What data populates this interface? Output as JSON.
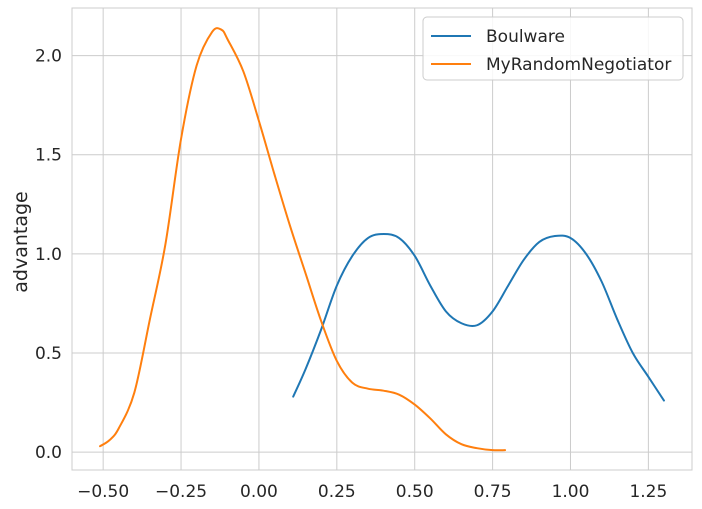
{
  "chart_data": {
    "type": "line",
    "xlabel": "",
    "ylabel": "advantage",
    "xlim": [
      -0.6,
      1.39
    ],
    "ylim": [
      -0.09,
      2.24
    ],
    "x_ticks": [
      -0.5,
      -0.25,
      0.0,
      0.25,
      0.5,
      0.75,
      1.0,
      1.25
    ],
    "x_tick_labels": [
      "−0.50",
      "−0.25",
      "0.00",
      "0.25",
      "0.50",
      "0.75",
      "1.00",
      "1.25"
    ],
    "y_ticks": [
      0.0,
      0.5,
      1.0,
      1.5,
      2.0
    ],
    "y_tick_labels": [
      "0.0",
      "0.5",
      "1.0",
      "1.5",
      "2.0"
    ],
    "grid": true,
    "legend_position": "top-right",
    "series": [
      {
        "name": "Boulware",
        "color": "#1f77b4",
        "x": [
          0.11,
          0.15,
          0.2,
          0.25,
          0.3,
          0.35,
          0.4,
          0.45,
          0.5,
          0.55,
          0.6,
          0.65,
          0.7,
          0.75,
          0.8,
          0.85,
          0.9,
          0.95,
          1.0,
          1.05,
          1.1,
          1.15,
          1.2,
          1.25,
          1.3
        ],
        "y": [
          0.28,
          0.42,
          0.62,
          0.84,
          0.99,
          1.08,
          1.1,
          1.08,
          0.99,
          0.84,
          0.71,
          0.65,
          0.64,
          0.71,
          0.84,
          0.97,
          1.06,
          1.09,
          1.08,
          1.0,
          0.86,
          0.67,
          0.5,
          0.38,
          0.26
        ]
      },
      {
        "name": "MyRandomNegotiator",
        "color": "#ff7f0e",
        "x": [
          -0.51,
          -0.48,
          -0.45,
          -0.4,
          -0.35,
          -0.3,
          -0.25,
          -0.2,
          -0.15,
          -0.12,
          -0.1,
          -0.05,
          0.0,
          0.05,
          0.1,
          0.15,
          0.2,
          0.25,
          0.3,
          0.35,
          0.4,
          0.45,
          0.5,
          0.55,
          0.6,
          0.65,
          0.7,
          0.75,
          0.79
        ],
        "y": [
          0.03,
          0.06,
          0.12,
          0.3,
          0.67,
          1.05,
          1.58,
          1.95,
          2.12,
          2.13,
          2.08,
          1.92,
          1.67,
          1.4,
          1.14,
          0.9,
          0.66,
          0.46,
          0.35,
          0.32,
          0.31,
          0.29,
          0.24,
          0.17,
          0.09,
          0.04,
          0.02,
          0.01,
          0.01
        ]
      }
    ]
  }
}
